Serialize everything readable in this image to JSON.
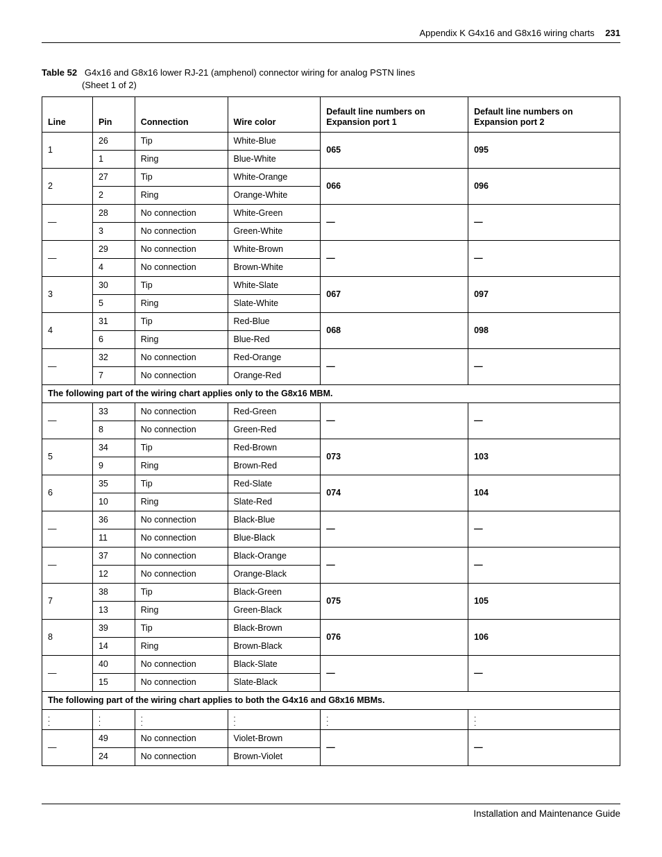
{
  "page": {
    "header_text": "Appendix K  G4x16 and G8x16 wiring charts",
    "page_number": "231",
    "footer_text": "Installation and Maintenance Guide"
  },
  "caption": {
    "label": "Table 52",
    "title": "G4x16 and G8x16 lower RJ-21 (amphenol) connector wiring for analog PSTN lines",
    "sheet": "(Sheet 1 of 2)"
  },
  "columns": {
    "line": "Line",
    "pin": "Pin",
    "connection": "Connection",
    "wire_color": "Wire color",
    "ep1": "Default line numbers on Expansion port 1",
    "ep2": "Default line numbers on Expansion port 2"
  },
  "section_note_1": "The following part of the wiring chart applies only to the G8x16 MBM.",
  "section_note_2": "The following part of the wiring chart applies to both the G4x16 and G8x16 MBMs.",
  "dash": "—",
  "groups": [
    {
      "line": "1",
      "pin_a": "26",
      "conn_a": "Tip",
      "wire_a": "White-Blue",
      "pin_b": "1",
      "conn_b": "Ring",
      "wire_b": "Blue-White",
      "ep1": "065",
      "ep2": "095"
    },
    {
      "line": "2",
      "pin_a": "27",
      "conn_a": "Tip",
      "wire_a": "White-Orange",
      "pin_b": "2",
      "conn_b": "Ring",
      "wire_b": "Orange-White",
      "ep1": "066",
      "ep2": "096"
    },
    {
      "line": "—",
      "pin_a": "28",
      "conn_a": "No connection",
      "wire_a": "White-Green",
      "pin_b": "3",
      "conn_b": "No connection",
      "wire_b": "Green-White",
      "ep1": "—",
      "ep2": "—"
    },
    {
      "line": "—",
      "pin_a": "29",
      "conn_a": "No connection",
      "wire_a": "White-Brown",
      "pin_b": "4",
      "conn_b": "No connection",
      "wire_b": "Brown-White",
      "ep1": "—",
      "ep2": "—"
    },
    {
      "line": "3",
      "pin_a": "30",
      "conn_a": "Tip",
      "wire_a": "White-Slate",
      "pin_b": "5",
      "conn_b": "Ring",
      "wire_b": "Slate-White",
      "ep1": "067",
      "ep2": "097"
    },
    {
      "line": "4",
      "pin_a": "31",
      "conn_a": "Tip",
      "wire_a": "Red-Blue",
      "pin_b": "6",
      "conn_b": "Ring",
      "wire_b": "Blue-Red",
      "ep1": "068",
      "ep2": "098"
    },
    {
      "line": "—",
      "pin_a": "32",
      "conn_a": "No connection",
      "wire_a": "Red-Orange",
      "pin_b": "7",
      "conn_b": "No connection",
      "wire_b": "Orange-Red",
      "ep1": "—",
      "ep2": "—"
    }
  ],
  "groups2": [
    {
      "line": "—",
      "pin_a": "33",
      "conn_a": "No connection",
      "wire_a": "Red-Green",
      "pin_b": "8",
      "conn_b": "No connection",
      "wire_b": "Green-Red",
      "ep1": "—",
      "ep2": "—"
    },
    {
      "line": "5",
      "pin_a": "34",
      "conn_a": "Tip",
      "wire_a": "Red-Brown",
      "pin_b": "9",
      "conn_b": "Ring",
      "wire_b": "Brown-Red",
      "ep1": "073",
      "ep2": "103"
    },
    {
      "line": "6",
      "pin_a": "35",
      "conn_a": "Tip",
      "wire_a": "Red-Slate",
      "pin_b": "10",
      "conn_b": "Ring",
      "wire_b": "Slate-Red",
      "ep1": "074",
      "ep2": "104"
    },
    {
      "line": "—",
      "pin_a": "36",
      "conn_a": "No connection",
      "wire_a": "Black-Blue",
      "pin_b": "11",
      "conn_b": "No connection",
      "wire_b": "Blue-Black",
      "ep1": "—",
      "ep2": "—"
    },
    {
      "line": "—",
      "pin_a": "37",
      "conn_a": "No connection",
      "wire_a": "Black-Orange",
      "pin_b": "12",
      "conn_b": "No connection",
      "wire_b": "Orange-Black",
      "ep1": "—",
      "ep2": "—"
    },
    {
      "line": "7",
      "pin_a": "38",
      "conn_a": "Tip",
      "wire_a": "Black-Green",
      "pin_b": "13",
      "conn_b": "Ring",
      "wire_b": "Green-Black",
      "ep1": "075",
      "ep2": "105"
    },
    {
      "line": "8",
      "pin_a": "39",
      "conn_a": "Tip",
      "wire_a": "Black-Brown",
      "pin_b": "14",
      "conn_b": "Ring",
      "wire_b": "Brown-Black",
      "ep1": "076",
      "ep2": "106"
    },
    {
      "line": "—",
      "pin_a": "40",
      "conn_a": "No connection",
      "wire_a": "Black-Slate",
      "pin_b": "15",
      "conn_b": "No connection",
      "wire_b": "Slate-Black",
      "ep1": "—",
      "ep2": "—"
    }
  ],
  "groups3": [
    {
      "line": "—",
      "pin_a": "49",
      "conn_a": "No connection",
      "wire_a": "Violet-Brown",
      "pin_b": "24",
      "conn_b": "No connection",
      "wire_b": "Brown-Violet",
      "ep1": "—",
      "ep2": "—"
    }
  ]
}
